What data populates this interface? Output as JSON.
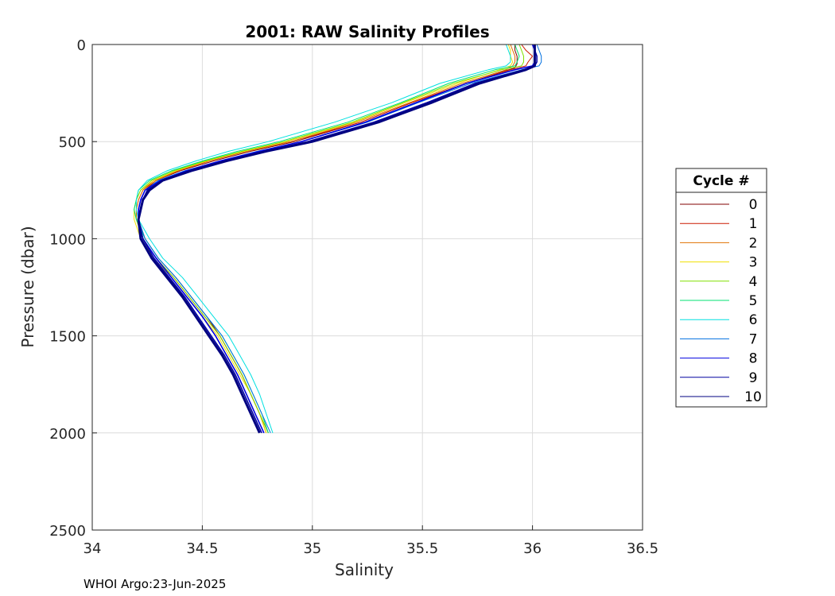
{
  "chart_data": {
    "type": "line",
    "title": "2001: RAW Salinity Profiles",
    "xlabel": "Salinity",
    "ylabel": "Pressure (dbar)",
    "xlim": [
      34,
      36.5
    ],
    "ylim": [
      0,
      2500
    ],
    "y_reversed": true,
    "grid": true,
    "x_ticks": [
      "34",
      "34.5",
      "35",
      "35.5",
      "36",
      "36.5"
    ],
    "y_ticks": [
      "0",
      "500",
      "1000",
      "1500",
      "2000",
      "2500"
    ],
    "legend": {
      "title": "Cycle #",
      "placement": "outside-right"
    },
    "series": [
      {
        "name": "0",
        "color": "#800000",
        "pressure": [
          0,
          30,
          60,
          90,
          100,
          120,
          200,
          300,
          400,
          500,
          550,
          600,
          650,
          700,
          750,
          800,
          850,
          900,
          1000,
          1100,
          1200,
          1300,
          1400,
          1500,
          1600,
          1700,
          1800,
          1900,
          2000
        ],
        "salinity": [
          35.92,
          35.92,
          35.93,
          35.93,
          35.93,
          35.92,
          35.7,
          35.45,
          35.22,
          34.92,
          34.72,
          34.55,
          34.4,
          34.29,
          34.24,
          34.22,
          34.21,
          34.21,
          34.24,
          34.3,
          34.38,
          34.45,
          34.52,
          34.58,
          34.63,
          34.68,
          34.72,
          34.76,
          34.8
        ]
      },
      {
        "name": "1",
        "color": "#cc1a00",
        "pressure": [
          0,
          30,
          60,
          90,
          110,
          130,
          200,
          300,
          400,
          500,
          550,
          600,
          650,
          700,
          750,
          800,
          850,
          900,
          1000,
          1100,
          1200,
          1300,
          1400,
          1500,
          1600,
          1700,
          1800,
          1900,
          2000
        ],
        "salinity": [
          35.95,
          35.97,
          36.0,
          35.98,
          35.97,
          35.9,
          35.7,
          35.45,
          35.22,
          34.9,
          34.7,
          34.53,
          34.39,
          34.28,
          34.23,
          34.21,
          34.2,
          34.2,
          34.23,
          34.29,
          34.37,
          34.44,
          34.51,
          34.58,
          34.63,
          34.68,
          34.72,
          34.76,
          34.79
        ]
      },
      {
        "name": "2",
        "color": "#e07000",
        "pressure": [
          0,
          30,
          60,
          90,
          110,
          130,
          200,
          300,
          400,
          500,
          550,
          600,
          650,
          700,
          750,
          800,
          850,
          900,
          1000,
          1100,
          1200,
          1300,
          1400,
          1500,
          1600,
          1700,
          1800,
          1900,
          2000
        ],
        "salinity": [
          35.9,
          35.91,
          35.92,
          35.92,
          35.91,
          35.88,
          35.68,
          35.44,
          35.2,
          34.9,
          34.7,
          34.53,
          34.39,
          34.29,
          34.23,
          34.21,
          34.2,
          34.2,
          34.23,
          34.29,
          34.37,
          34.44,
          34.51,
          34.58,
          34.63,
          34.68,
          34.72,
          34.76,
          34.79
        ]
      },
      {
        "name": "3",
        "color": "#f0e000",
        "pressure": [
          0,
          30,
          60,
          90,
          110,
          130,
          200,
          300,
          400,
          500,
          550,
          600,
          650,
          700,
          750,
          800,
          850,
          900,
          1000,
          1100,
          1200,
          1300,
          1400,
          1500,
          1600,
          1700,
          1800,
          1900,
          2000
        ],
        "salinity": [
          35.89,
          35.9,
          35.9,
          35.91,
          35.9,
          35.85,
          35.66,
          35.42,
          35.19,
          34.88,
          34.69,
          34.52,
          34.38,
          34.28,
          34.22,
          34.2,
          34.19,
          34.19,
          34.22,
          34.28,
          34.36,
          34.43,
          34.5,
          34.57,
          34.62,
          34.67,
          34.72,
          34.76,
          34.79
        ]
      },
      {
        "name": "4",
        "color": "#80e000",
        "pressure": [
          0,
          30,
          60,
          90,
          110,
          130,
          200,
          300,
          400,
          500,
          550,
          600,
          650,
          700,
          750,
          800,
          850,
          900,
          1000,
          1100,
          1200,
          1300,
          1400,
          1500,
          1600,
          1700,
          1800,
          1900,
          2000
        ],
        "salinity": [
          35.94,
          35.95,
          35.96,
          35.96,
          35.95,
          35.86,
          35.64,
          35.41,
          35.18,
          34.87,
          34.68,
          34.51,
          34.37,
          34.27,
          34.22,
          34.2,
          34.19,
          34.2,
          34.23,
          34.29,
          34.37,
          34.44,
          34.51,
          34.58,
          34.63,
          34.68,
          34.72,
          34.76,
          34.8
        ]
      },
      {
        "name": "5",
        "color": "#00e070",
        "pressure": [
          0,
          30,
          60,
          90,
          110,
          130,
          200,
          300,
          400,
          500,
          550,
          600,
          650,
          700,
          750,
          800,
          850,
          900,
          1000,
          1100,
          1200,
          1300,
          1400,
          1500,
          1600,
          1700,
          1800,
          1900,
          2000
        ],
        "salinity": [
          35.92,
          35.93,
          35.94,
          35.93,
          35.92,
          35.83,
          35.62,
          35.4,
          35.16,
          34.85,
          34.66,
          34.5,
          34.36,
          34.26,
          34.21,
          34.2,
          34.19,
          34.2,
          34.24,
          34.3,
          34.38,
          34.45,
          34.52,
          34.59,
          34.64,
          34.69,
          34.73,
          34.77,
          34.8
        ]
      },
      {
        "name": "6",
        "color": "#00e0e0",
        "pressure": [
          0,
          30,
          60,
          90,
          110,
          130,
          200,
          300,
          400,
          500,
          550,
          600,
          650,
          700,
          750,
          800,
          850,
          900,
          1000,
          1100,
          1200,
          1300,
          1400,
          1500,
          1600,
          1700,
          1800,
          1900,
          2000
        ],
        "salinity": [
          35.88,
          35.89,
          35.9,
          35.9,
          35.88,
          35.8,
          35.58,
          35.36,
          35.1,
          34.8,
          34.62,
          34.47,
          34.34,
          34.25,
          34.21,
          34.2,
          34.2,
          34.21,
          34.26,
          34.32,
          34.41,
          34.48,
          34.55,
          34.62,
          34.67,
          34.72,
          34.76,
          34.79,
          34.82
        ]
      },
      {
        "name": "7",
        "color": "#0070e0",
        "pressure": [
          0,
          30,
          60,
          90,
          110,
          130,
          200,
          300,
          400,
          500,
          550,
          600,
          650,
          700,
          750,
          800,
          850,
          900,
          1000,
          1100,
          1200,
          1300,
          1400,
          1500,
          1600,
          1700,
          1800,
          1900,
          2000
        ],
        "salinity": [
          36.02,
          36.03,
          36.04,
          36.04,
          36.03,
          35.95,
          35.72,
          35.48,
          35.25,
          34.95,
          34.75,
          34.58,
          34.42,
          34.3,
          34.24,
          34.22,
          34.21,
          34.21,
          34.24,
          34.3,
          34.38,
          34.45,
          34.52,
          34.59,
          34.64,
          34.69,
          34.73,
          34.77,
          34.81
        ]
      },
      {
        "name": "8",
        "color": "#0000e0",
        "pressure": [
          0,
          30,
          60,
          90,
          110,
          130,
          200,
          300,
          400,
          500,
          550,
          600,
          650,
          700,
          750,
          800,
          850,
          900,
          1000,
          1100,
          1200,
          1300,
          1400,
          1500,
          1600,
          1700,
          1800,
          1900,
          2000
        ],
        "salinity": [
          36.0,
          36.01,
          36.01,
          36.01,
          36.0,
          35.92,
          35.7,
          35.47,
          35.24,
          34.95,
          34.76,
          34.58,
          34.43,
          34.31,
          34.24,
          34.22,
          34.21,
          34.21,
          34.23,
          34.29,
          34.36,
          34.43,
          34.5,
          34.56,
          34.61,
          34.66,
          34.7,
          34.74,
          34.78
        ]
      },
      {
        "name": "9",
        "color": "#0000a0",
        "pressure": [
          0,
          30,
          60,
          90,
          110,
          130,
          200,
          300,
          400,
          500,
          550,
          600,
          650,
          700,
          750,
          800,
          850,
          900,
          1000,
          1100,
          1200,
          1300,
          1400,
          1500,
          1600,
          1700,
          1800,
          1900,
          2000
        ],
        "salinity": [
          36.01,
          36.01,
          36.02,
          36.02,
          36.01,
          35.96,
          35.74,
          35.52,
          35.28,
          34.98,
          34.78,
          34.6,
          34.44,
          34.32,
          34.25,
          34.23,
          34.22,
          34.21,
          34.23,
          34.28,
          34.35,
          34.42,
          34.48,
          34.54,
          34.6,
          34.65,
          34.69,
          34.73,
          34.77
        ]
      },
      {
        "name": "10",
        "color": "#000080",
        "pressure": [
          0,
          30,
          60,
          90,
          110,
          130,
          200,
          300,
          400,
          500,
          550,
          600,
          650,
          700,
          750,
          800,
          850,
          900,
          1000,
          1100,
          1200,
          1300,
          1400,
          1500,
          1600,
          1700,
          1800,
          1900,
          2000
        ],
        "salinity": [
          36.01,
          36.01,
          36.01,
          36.01,
          36.01,
          35.97,
          35.76,
          35.54,
          35.3,
          35.0,
          34.79,
          34.61,
          34.45,
          34.32,
          34.26,
          34.23,
          34.22,
          34.21,
          34.22,
          34.27,
          34.34,
          34.41,
          34.47,
          34.53,
          34.59,
          34.64,
          34.68,
          34.72,
          34.76
        ]
      }
    ]
  },
  "footer": {
    "text": "WHOI Argo:23-Jun-2025"
  }
}
